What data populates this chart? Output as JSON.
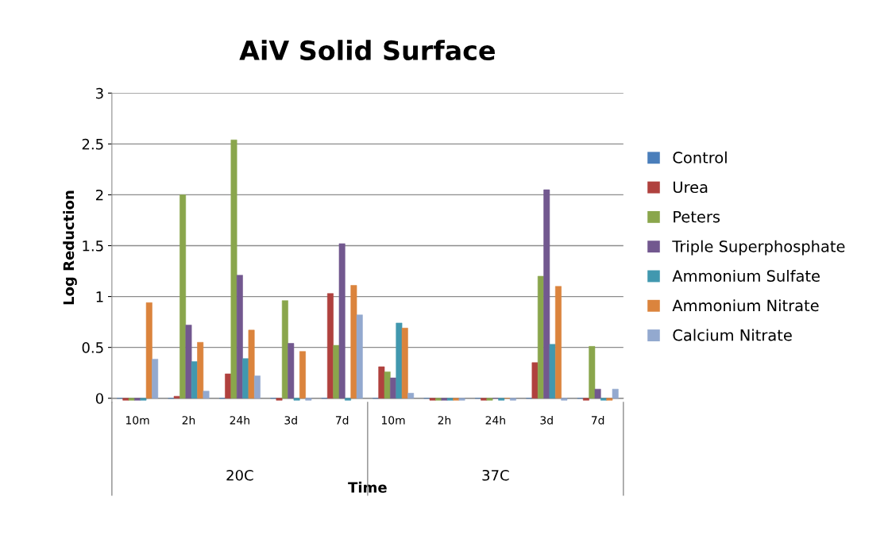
{
  "chart_data": {
    "type": "bar",
    "title": "AiV Solid Surface",
    "xlabel": "Time",
    "ylabel": "Log Reduction",
    "categories": [
      "10m",
      "2h",
      "24h",
      "3d",
      "7d",
      "10m",
      "2h",
      "24h",
      "3d",
      "7d"
    ],
    "annotations": [
      "20C",
      "37C"
    ],
    "series": [
      {
        "name": "Control",
        "color": "#4a7ebb",
        "values": [
          0,
          0,
          0,
          0,
          0,
          0,
          0,
          0,
          0,
          0
        ]
      },
      {
        "name": "Urea",
        "color": "#b0413e",
        "values": [
          -0.02,
          0.02,
          0.24,
          -0.02,
          1.03,
          0.31,
          -0.02,
          -0.02,
          0.35,
          -0.02
        ]
      },
      {
        "name": "Peters",
        "color": "#8aa64c",
        "values": [
          -0.02,
          2.0,
          2.54,
          0.96,
          0.52,
          0.26,
          -0.02,
          -0.02,
          1.2,
          0.51
        ]
      },
      {
        "name": "Triple Superphosphate",
        "color": "#72588f",
        "values": [
          -0.02,
          0.72,
          1.21,
          0.54,
          1.52,
          0.2,
          -0.02,
          0,
          2.05,
          0.09
        ]
      },
      {
        "name": "Ammonium Sulfate",
        "color": "#4198af",
        "values": [
          -0.02,
          0.36,
          0.39,
          -0.02,
          -0.02,
          0.74,
          -0.02,
          -0.02,
          0.53,
          -0.02
        ]
      },
      {
        "name": "Ammonium Nitrate",
        "color": "#db843d",
        "values": [
          0.94,
          0.55,
          0.67,
          0.46,
          1.11,
          0.69,
          -0.02,
          0,
          1.1,
          -0.02
        ]
      },
      {
        "name": "Calcium Nitrate",
        "color": "#93a9cf",
        "values": [
          0.385,
          0.07,
          0.22,
          -0.02,
          0.82,
          0.05,
          -0.02,
          -0.02,
          -0.02,
          0.09
        ]
      }
    ],
    "ylim": [
      -0.04,
      3
    ],
    "yticks": [
      0,
      0.5,
      1,
      1.5,
      2,
      2.5,
      3
    ],
    "grid": "y",
    "legend": "right"
  }
}
